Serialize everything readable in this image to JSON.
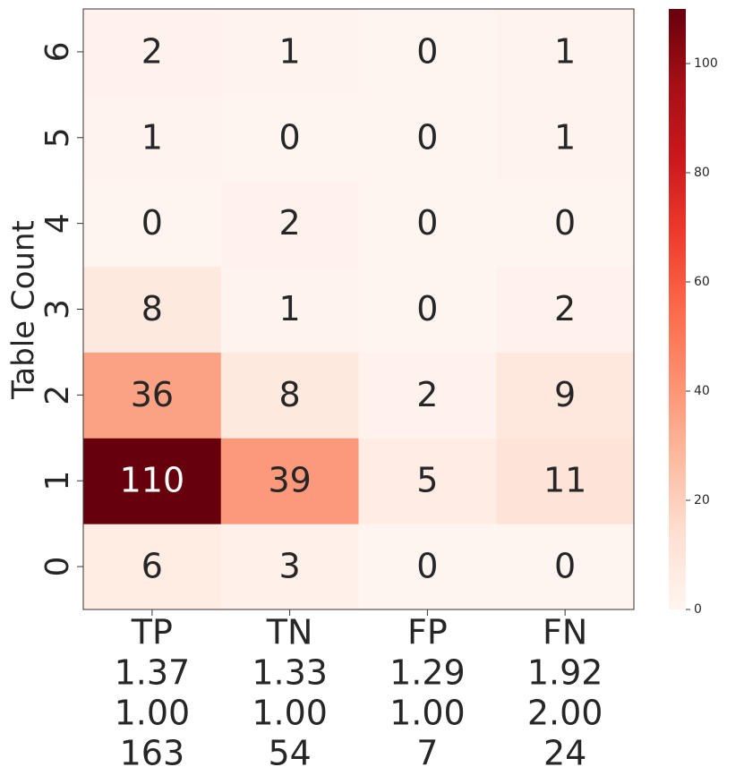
{
  "chart_data": {
    "type": "heatmap",
    "ylabel": "Table Count",
    "categories": [
      "TP",
      "TN",
      "FP",
      "FN"
    ],
    "x_sublabels": [
      [
        "1.37",
        "1.33",
        "1.29",
        "1.92"
      ],
      [
        "1.00",
        "1.00",
        "1.00",
        "2.00"
      ],
      [
        "163",
        "54",
        "7",
        "24"
      ]
    ],
    "y_categories": [
      0,
      1,
      2,
      3,
      4,
      5,
      6
    ],
    "values": [
      [
        6,
        3,
        0,
        0
      ],
      [
        110,
        39,
        5,
        11
      ],
      [
        36,
        8,
        2,
        9
      ],
      [
        8,
        1,
        0,
        2
      ],
      [
        0,
        2,
        0,
        0
      ],
      [
        1,
        0,
        0,
        1
      ],
      [
        2,
        1,
        0,
        1
      ]
    ],
    "colormap": [
      "#fff5f0",
      "#fee0d2",
      "#fcbba1",
      "#fc9272",
      "#fb6a4a",
      "#ef3b2c",
      "#cb181d",
      "#a50f15",
      "#67000d"
    ],
    "clim": [
      0,
      110
    ],
    "cticks": [
      0,
      20,
      40,
      60,
      80,
      100
    ]
  }
}
